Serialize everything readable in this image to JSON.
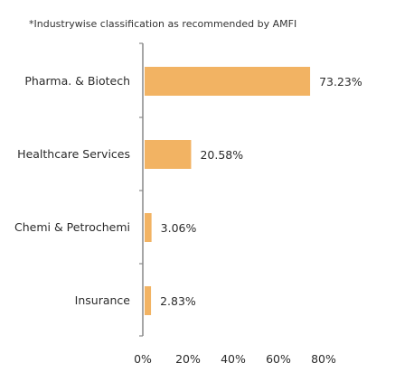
{
  "footnote": "*Industrywise classification as recommended by AMFI",
  "chart_data": {
    "type": "bar",
    "orientation": "horizontal",
    "categories": [
      "Pharma. & Biotech",
      "Healthcare Services",
      "Chemi & Petrochemi",
      "Insurance"
    ],
    "values": [
      73.23,
      20.58,
      3.06,
      2.83
    ],
    "value_labels": [
      "73.23%",
      "20.58%",
      "3.06%",
      "2.83%"
    ],
    "xlim": [
      0,
      80
    ],
    "ticks": [
      0,
      20,
      40,
      60,
      80
    ],
    "tick_labels": [
      "0%",
      "20%",
      "40%",
      "60%",
      "80%"
    ],
    "grid": false,
    "legend": "none",
    "colors": {
      "bar": "#f2b363",
      "axis": "#888888",
      "text": "#2b2b2b"
    }
  }
}
